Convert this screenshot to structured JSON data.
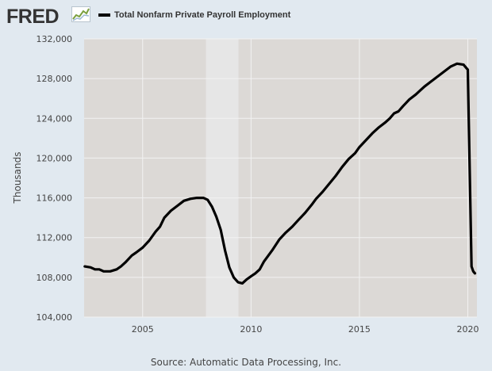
{
  "header": {
    "logo_text": "FRED",
    "logo_icon": "line-chart-icon"
  },
  "source": "Source: Automatic Data Processing, Inc.",
  "colors": {
    "page_background": "#e1e9f0",
    "plot_background": "#dcd9d6",
    "recession_band": "#e6e6e6",
    "series_line": "#000000",
    "gridline": "#f2f2f2"
  },
  "chart_data": {
    "type": "line",
    "title": "",
    "xlabel": "",
    "ylabel": "Thousands",
    "xlim": [
      2002.3,
      2020.42
    ],
    "ylim": [
      104000,
      132000
    ],
    "yticks": [
      104000,
      108000,
      112000,
      116000,
      120000,
      124000,
      128000,
      132000
    ],
    "ytick_labels": [
      "104,000",
      "108,000",
      "112,000",
      "116,000",
      "120,000",
      "124,000",
      "128,000",
      "132,000"
    ],
    "xticks": [
      2005,
      2010,
      2015,
      2020
    ],
    "xtick_labels": [
      "2005",
      "2010",
      "2015",
      "2020"
    ],
    "grid": true,
    "legend_position": "top",
    "recessions": [
      [
        2007.92,
        2009.42
      ]
    ],
    "series": [
      {
        "name": "Total Nonfarm Private Payroll Employment",
        "x": [
          2002.33,
          2002.6,
          2002.8,
          2003.0,
          2003.2,
          2003.5,
          2003.8,
          2004.0,
          2004.2,
          2004.5,
          2004.7,
          2005.0,
          2005.3,
          2005.6,
          2005.8,
          2006.0,
          2006.3,
          2006.6,
          2006.9,
          2007.2,
          2007.5,
          2007.8,
          2008.0,
          2008.2,
          2008.4,
          2008.6,
          2008.8,
          2009.0,
          2009.2,
          2009.4,
          2009.6,
          2009.8,
          2010.0,
          2010.2,
          2010.4,
          2010.6,
          2010.8,
          2011.0,
          2011.3,
          2011.6,
          2011.9,
          2012.2,
          2012.5,
          2012.8,
          2013.0,
          2013.3,
          2013.6,
          2013.9,
          2014.2,
          2014.5,
          2014.8,
          2015.0,
          2015.3,
          2015.6,
          2015.9,
          2016.2,
          2016.4,
          2016.6,
          2016.8,
          2017.0,
          2017.3,
          2017.6,
          2017.8,
          2018.0,
          2018.3,
          2018.6,
          2018.9,
          2019.2,
          2019.5,
          2019.8,
          2020.0,
          2020.17,
          2020.25,
          2020.33
        ],
        "values": [
          109100,
          109000,
          108800,
          108800,
          108600,
          108600,
          108800,
          109100,
          109500,
          110200,
          110500,
          111000,
          111700,
          112600,
          113100,
          114000,
          114700,
          115200,
          115700,
          115900,
          116000,
          116000,
          115800,
          115100,
          114100,
          112800,
          110700,
          109000,
          108000,
          107500,
          107400,
          107800,
          108100,
          108400,
          108800,
          109600,
          110200,
          110800,
          111800,
          112500,
          113100,
          113800,
          114500,
          115300,
          115900,
          116600,
          117400,
          118200,
          119100,
          119900,
          120500,
          121100,
          121800,
          122500,
          123100,
          123600,
          124000,
          124500,
          124700,
          125200,
          125900,
          126400,
          126800,
          127200,
          127700,
          128200,
          128700,
          129200,
          129500,
          129400,
          128900,
          109100,
          108600,
          108400
        ]
      }
    ]
  }
}
